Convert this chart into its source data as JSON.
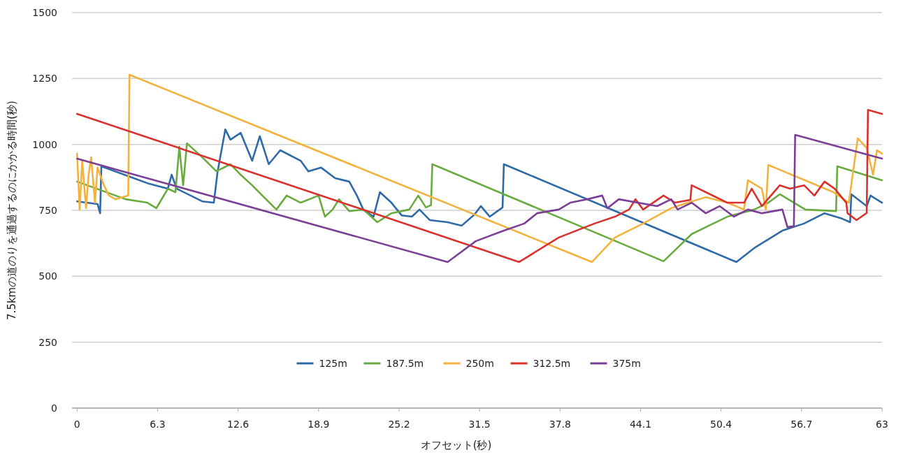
{
  "chart_data": {
    "type": "line",
    "xlabel": "オフセット(秒)",
    "ylabel": "7.5kmの道のりを通過するのにかかる時間(秒)",
    "xlim": [
      -0.4,
      63
    ],
    "xticks": [
      0,
      6.3,
      12.6,
      18.9,
      25.2,
      31.5,
      37.8,
      44.1,
      50.4,
      56.7,
      63
    ],
    "ylim": [
      0,
      1500
    ],
    "yticks": [
      0,
      250,
      500,
      750,
      1000,
      1250,
      1500
    ],
    "grid": "y",
    "legend": "bottom",
    "marker": "none",
    "line_style": "solid",
    "series": [
      {
        "name": "125m",
        "color": "#2e6aa8",
        "x": [
          0,
          1.6,
          1.8,
          1.9,
          5.5,
          7.1,
          7.4,
          7.8,
          9.8,
          10.7,
          11.0,
          11.6,
          12.0,
          12.8,
          13.7,
          14.3,
          15.0,
          15.9,
          17.5,
          18.1,
          19.1,
          20.2,
          21.3,
          21.9,
          22.4,
          23.2,
          23.7,
          24.6,
          25.4,
          26.2,
          26.8,
          27.6,
          29.0,
          30.1,
          31.1,
          31.6,
          32.3,
          33.3,
          33.4,
          51.6,
          53.0,
          55.2,
          56.9,
          58.5,
          59.9,
          60.5,
          60.6,
          61.8,
          62.1,
          63.0
        ],
        "values": [
          784,
          774,
          739,
          917,
          853,
          832,
          885,
          832,
          784,
          779,
          898,
          1057,
          1018,
          1044,
          938,
          1031,
          925,
          978,
          938,
          898,
          912,
          872,
          859,
          806,
          753,
          726,
          819,
          779,
          731,
          726,
          753,
          713,
          705,
          692,
          734,
          766,
          726,
          761,
          925,
          554,
          607,
          673,
          700,
          739,
          718,
          705,
          811,
          766,
          806,
          779
        ]
      },
      {
        "name": "187.5m",
        "color": "#6aab3f",
        "x": [
          0,
          3.8,
          5.5,
          6.2,
          7.1,
          7.7,
          8.0,
          8.3,
          8.6,
          9.8,
          10.9,
          12.0,
          12.8,
          13.7,
          14.5,
          15.6,
          16.4,
          17.5,
          18.9,
          19.4,
          20.0,
          20.5,
          21.3,
          22.4,
          23.5,
          24.6,
          26.0,
          26.7,
          27.3,
          27.7,
          27.8,
          45.9,
          48.1,
          50.9,
          53.0,
          54.1,
          55.0,
          57.0,
          59.4,
          59.5,
          63.0
        ],
        "values": [
          859,
          792,
          779,
          758,
          832,
          819,
          991,
          845,
          1004,
          951,
          898,
          925,
          885,
          845,
          806,
          753,
          806,
          779,
          806,
          726,
          753,
          792,
          747,
          753,
          705,
          739,
          753,
          806,
          761,
          770,
          925,
          557,
          660,
          726,
          753,
          779,
          811,
          753,
          747,
          917,
          864
        ]
      },
      {
        "name": "250m",
        "color": "#f2b23e",
        "x": [
          0,
          0.2,
          0.4,
          0.7,
          0.9,
          1.1,
          1.4,
          1.6,
          2.1,
          2.5,
          3.0,
          4.0,
          4.1,
          40.3,
          42.1,
          44.3,
          46.5,
          47.3,
          49.2,
          50.9,
          52.2,
          52.5,
          53.6,
          53.9,
          54.1,
          59.2,
          60.4,
          61.1,
          61.8,
          62.3,
          62.6,
          63.0
        ],
        "values": [
          965,
          753,
          938,
          758,
          885,
          951,
          779,
          912,
          845,
          806,
          792,
          806,
          1264,
          554,
          647,
          700,
          758,
          771,
          800,
          779,
          753,
          864,
          832,
          753,
          922,
          819,
          779,
          1023,
          986,
          885,
          978,
          965
        ]
      },
      {
        "name": "312.5m",
        "color": "#d9312d",
        "x": [
          0,
          34.6,
          37.7,
          40.5,
          42.1,
          43.2,
          43.7,
          44.3,
          45.9,
          46.8,
          48.0,
          48.1,
          50.9,
          52.2,
          52.8,
          53.6,
          55.0,
          55.8,
          56.9,
          57.7,
          58.5,
          59.3,
          60.2,
          60.3,
          61.0,
          61.8,
          61.9,
          63.0
        ],
        "values": [
          1116,
          554,
          647,
          700,
          726,
          753,
          792,
          753,
          806,
          779,
          790,
          845,
          779,
          779,
          832,
          766,
          845,
          832,
          845,
          806,
          859,
          832,
          779,
          739,
          713,
          740,
          1131,
          1116
        ]
      },
      {
        "name": "375m",
        "color": "#7b3f96",
        "x": [
          0,
          29.0,
          31.2,
          33.4,
          35.0,
          36.0,
          37.7,
          38.6,
          39.9,
          41.1,
          41.5,
          42.4,
          45.4,
          46.5,
          47.0,
          48.1,
          49.2,
          50.3,
          51.4,
          52.5,
          53.6,
          55.2,
          55.6,
          56.1,
          56.2,
          63.0
        ],
        "values": [
          946,
          554,
          633,
          673,
          700,
          739,
          753,
          779,
          792,
          806,
          758,
          792,
          766,
          792,
          753,
          779,
          739,
          766,
          726,
          753,
          739,
          753,
          686,
          690,
          1036,
          946
        ]
      }
    ]
  }
}
